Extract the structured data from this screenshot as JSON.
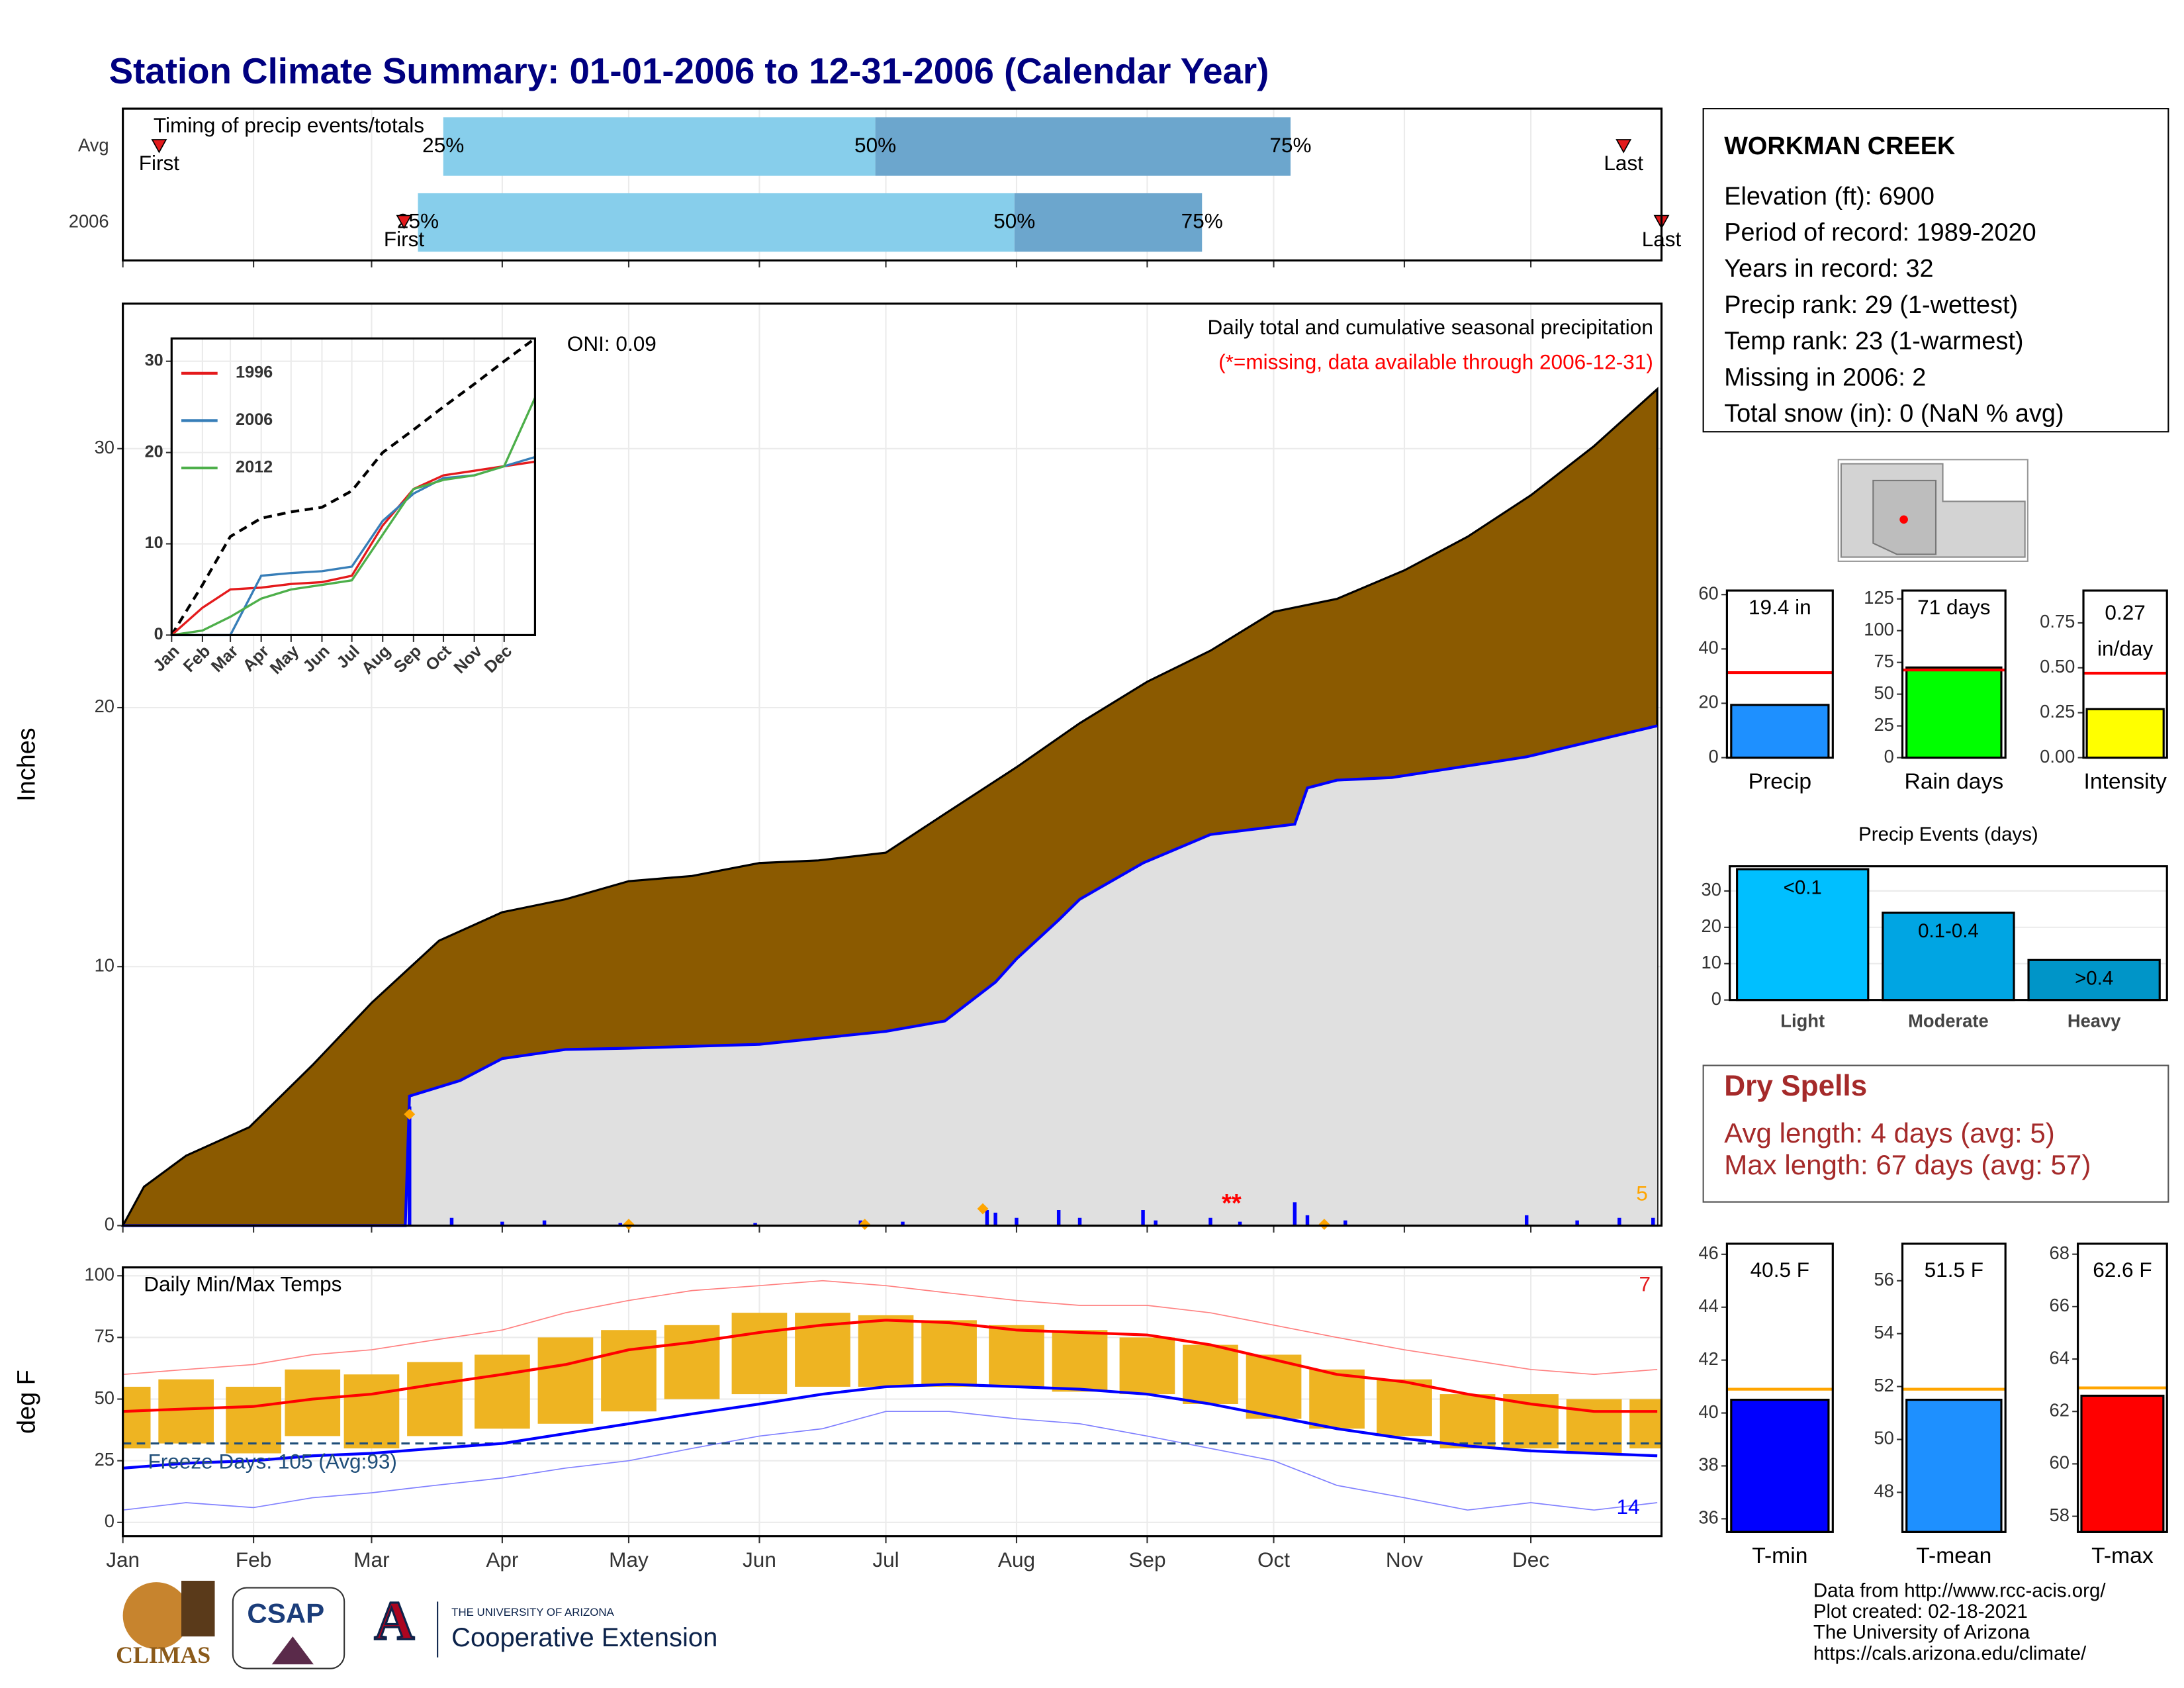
{
  "title": "Station Climate Summary: 01-01-2006 to 12-31-2006 (Calendar Year)",
  "chart_data": [
    {
      "type": "timing",
      "title": "Timing of precip events/totals",
      "categories": [
        "Avg",
        "2006"
      ],
      "first": [
        8.6,
        66.7
      ],
      "p25": [
        76,
        70
      ],
      "p50": [
        178.5,
        211.5
      ],
      "p75": [
        277,
        256
      ],
      "last": [
        356,
        365
      ],
      "percent_labels": [
        "25%",
        "50%",
        "75%"
      ],
      "first_label": "First",
      "last_label": "Last",
      "colors": {
        "lower": "#87ceeb",
        "upper": "#6ca6cd",
        "marker": "#e31a1c"
      },
      "xlim": [
        0,
        365
      ],
      "xticks": [
        0,
        31,
        59,
        90,
        120,
        151,
        181,
        212,
        243,
        273,
        304,
        334
      ]
    },
    {
      "type": "area",
      "subtitle": "Daily total and cumulative seasonal precipitation",
      "note": "(*=missing, data available through 2006-12-31)",
      "oni": "ONI: 0.09",
      "missing_mark": "**",
      "count_label": "5",
      "ylabel": "Inches",
      "avg_x": [
        0,
        5,
        15,
        30,
        45,
        59,
        75,
        90,
        105,
        120,
        135,
        151,
        165,
        181,
        195,
        212,
        227,
        243,
        258,
        273,
        288,
        304,
        319,
        334,
        349,
        364
      ],
      "avg_cumulative": [
        0,
        1.5,
        2.7,
        3.8,
        6.2,
        8.6,
        11,
        12.1,
        12.6,
        13.3,
        13.5,
        14,
        14.1,
        14.4,
        15.9,
        17.7,
        19.4,
        21,
        22.2,
        23.7,
        24.2,
        25.3,
        26.6,
        28.2,
        30.1,
        32.3
      ],
      "x": [
        0,
        67,
        68,
        80,
        90,
        105,
        120,
        151,
        181,
        195,
        207,
        212,
        222,
        227,
        242,
        258,
        278,
        281,
        288,
        301,
        333,
        364
      ],
      "cumulative": [
        0,
        0,
        5,
        5.6,
        6.45,
        6.8,
        6.85,
        7,
        7.5,
        7.9,
        9.4,
        10.3,
        11.8,
        12.6,
        14,
        15.1,
        15.5,
        16.9,
        17.2,
        17.3,
        18.1,
        19.3
      ],
      "daily_x": [
        68,
        78,
        90,
        100,
        118,
        150,
        175,
        185,
        205,
        207,
        212,
        222,
        227,
        242,
        245,
        258,
        265,
        278,
        281,
        290,
        333,
        345,
        355,
        363
      ],
      "daily": [
        4.6,
        0.3,
        0.15,
        0.2,
        0.1,
        0.1,
        0.2,
        0.15,
        0.6,
        0.5,
        0.3,
        0.6,
        0.3,
        0.6,
        0.2,
        0.3,
        0.15,
        0.9,
        0.4,
        0.2,
        0.4,
        0.2,
        0.3,
        0.3
      ],
      "marker_x": [
        68,
        120,
        176,
        204,
        285
      ],
      "markers": [
        4.3,
        0.05,
        0.05,
        0.65,
        0.05
      ],
      "colors": {
        "avg_area": "#8b5a00",
        "avg_line": "#000000",
        "area": "#e0e0e0",
        "line": "#0000ff",
        "daily": "#0000ff",
        "markers": "#ffa500",
        "note": "#ff0000",
        "count": "#ffa500"
      },
      "xlim": [
        0,
        365
      ],
      "xticks": [
        0,
        31,
        59,
        90,
        120,
        151,
        181,
        212,
        243,
        273,
        304,
        334
      ],
      "ylim": [
        0,
        35.6
      ],
      "yticks": [
        0,
        10,
        20,
        30
      ],
      "grid": true
    },
    {
      "type": "line",
      "x": [
        0,
        31,
        59,
        90,
        120,
        151,
        181,
        212,
        243,
        273,
        304,
        334,
        365
      ],
      "average": [
        0,
        5.5,
        10.8,
        12.8,
        13.5,
        14,
        15.8,
        20,
        22.5,
        25,
        27.5,
        30,
        32.5
      ],
      "series": [
        {
          "name": "1996",
          "color": "#e41a1c",
          "values": [
            0,
            3,
            5,
            5.2,
            5.6,
            5.8,
            6.5,
            12,
            16,
            17.5,
            18,
            18.5,
            19
          ]
        },
        {
          "name": "2006",
          "color": "#377eb8",
          "values": [
            0,
            0,
            0,
            6.5,
            6.8,
            7,
            7.5,
            12.5,
            15.5,
            17.2,
            17.5,
            18.5,
            19.5
          ]
        },
        {
          "name": "2012",
          "color": "#4daf4a",
          "values": [
            0,
            0.5,
            2,
            4,
            5,
            5.5,
            6,
            11,
            16,
            17,
            17.5,
            18.5,
            26
          ]
        }
      ],
      "xlim": [
        0,
        365
      ],
      "xticks": [
        {
          "value": 0,
          "label": "Jan"
        },
        {
          "value": 31,
          "label": "Feb"
        },
        {
          "value": 59,
          "label": "Mar"
        },
        {
          "value": 90,
          "label": "Apr"
        },
        {
          "value": 120,
          "label": "May"
        },
        {
          "value": 151,
          "label": "Jun"
        },
        {
          "value": 181,
          "label": "Jul"
        },
        {
          "value": 212,
          "label": "Aug"
        },
        {
          "value": 243,
          "label": "Sep"
        },
        {
          "value": 273,
          "label": "Oct"
        },
        {
          "value": 304,
          "label": "Nov"
        },
        {
          "value": 334,
          "label": "Dec"
        }
      ],
      "ylim": [
        0,
        32.5
      ],
      "yticks": [
        0,
        10,
        20,
        30
      ],
      "grid": true
    },
    {
      "type": "temperature",
      "title": "Daily Min/Max Temps",
      "freeze_label": "Freeze Days: 105 (Avg:93)",
      "high_count": "7",
      "low_count": "14",
      "ylabel": "deg F",
      "freeze": 32,
      "x": [
        0,
        15,
        31,
        45,
        59,
        74,
        90,
        105,
        120,
        135,
        151,
        166,
        181,
        196,
        212,
        227,
        243,
        258,
        273,
        288,
        304,
        319,
        334,
        349,
        364
      ],
      "avg_max": [
        45,
        46,
        47,
        50,
        52,
        56,
        60,
        64,
        70,
        73,
        77,
        80,
        82,
        81,
        78,
        77,
        76,
        72,
        66,
        60,
        57,
        52,
        48,
        45,
        45
      ],
      "avg_min": [
        22,
        24,
        25,
        27,
        28,
        30,
        32,
        36,
        40,
        44,
        48,
        52,
        55,
        56,
        55,
        54,
        52,
        48,
        43,
        38,
        34,
        31,
        29,
        28,
        27
      ],
      "max_extreme": [
        60,
        62,
        64,
        68,
        70,
        74,
        78,
        85,
        90,
        94,
        96,
        98,
        96,
        93,
        90,
        88,
        88,
        85,
        80,
        75,
        70,
        66,
        62,
        60,
        62
      ],
      "min_extreme": [
        5,
        8,
        6,
        10,
        12,
        15,
        18,
        22,
        25,
        30,
        35,
        38,
        45,
        45,
        42,
        40,
        35,
        30,
        25,
        15,
        10,
        5,
        8,
        5,
        8
      ],
      "daily_min": [
        30,
        32,
        28,
        35,
        30,
        35,
        38,
        40,
        45,
        50,
        52,
        55,
        55,
        55,
        55,
        53,
        52,
        48,
        42,
        38,
        35,
        30,
        30,
        28,
        30
      ],
      "daily_max": [
        55,
        58,
        55,
        62,
        60,
        65,
        68,
        75,
        78,
        80,
        85,
        85,
        84,
        82,
        80,
        78,
        75,
        72,
        68,
        62,
        58,
        52,
        52,
        50,
        50
      ],
      "colors": {
        "range": "#eeb422",
        "avg_max": "#ff0000",
        "avg_min": "#0000ff",
        "max_extreme": "#ff8080",
        "min_extreme": "#8080ff",
        "freeze": "#1f4e79",
        "high_count": "#e31a1c",
        "low_count": "#0000ff"
      },
      "xlim": [
        0,
        365
      ],
      "xticks": [
        {
          "value": 0,
          "label": "Jan"
        },
        {
          "value": 31,
          "label": "Feb"
        },
        {
          "value": 59,
          "label": "Mar"
        },
        {
          "value": 90,
          "label": "Apr"
        },
        {
          "value": 120,
          "label": "May"
        },
        {
          "value": 151,
          "label": "Jun"
        },
        {
          "value": 181,
          "label": "Jul"
        },
        {
          "value": 212,
          "label": "Aug"
        },
        {
          "value": 243,
          "label": "Sep"
        },
        {
          "value": 273,
          "label": "Oct"
        },
        {
          "value": 304,
          "label": "Nov"
        },
        {
          "value": 334,
          "label": "Dec"
        }
      ],
      "ylim": [
        -5.6,
        103.4
      ],
      "yticks": [
        0,
        25,
        50,
        75,
        100
      ],
      "grid": true
    },
    {
      "type": "bar",
      "categories": [
        "Precip"
      ],
      "values": [
        19.4
      ],
      "value_labels": [
        "19.4 in"
      ],
      "average": 31.3,
      "average_color": "#ff0000",
      "color": "#1e90ff",
      "ylim": [
        0,
        61.5
      ],
      "yticks": [
        0,
        20,
        40,
        60
      ]
    },
    {
      "type": "bar",
      "categories": [
        "Rain days"
      ],
      "values": [
        71
      ],
      "value_labels": [
        "71 days"
      ],
      "average": 69,
      "average_color": "#ff0000",
      "color": "#00ff00",
      "ylim": [
        0,
        131.6
      ],
      "yticks": [
        0,
        25,
        50,
        75,
        100,
        125
      ]
    },
    {
      "type": "bar",
      "categories": [
        "Intensity"
      ],
      "values": [
        0.27
      ],
      "value_labels": [
        "0.27 in/day"
      ],
      "average": 0.47,
      "average_color": "#ff0000",
      "color": "#ffff00",
      "ylim": [
        0,
        0.93
      ],
      "yticks": [
        {
          "value": 0,
          "label": "0.00"
        },
        0.25,
        {
          "value": 0.5,
          "label": "0.50"
        },
        0.75
      ]
    },
    {
      "type": "bar",
      "title": "Precip Events (days)",
      "categories": [
        "Light",
        "Moderate",
        "Heavy"
      ],
      "values": [
        36,
        24,
        11
      ],
      "bar_labels": [
        "<0.1",
        "0.1-0.4",
        ">0.4"
      ],
      "colors": [
        "#00bfff",
        "#00a5e3",
        "#0095c8"
      ],
      "ylim": [
        0,
        36.8
      ],
      "yticks": [
        0,
        10,
        20,
        30
      ],
      "grid": true
    },
    {
      "type": "bar",
      "categories": [
        "T-min"
      ],
      "values": [
        40.5
      ],
      "value_labels": [
        "40.5 F"
      ],
      "average": 40.9,
      "average_color": "#ffa500",
      "color": "#0000ff",
      "ylim": [
        35.5,
        46.4
      ],
      "yticks": [
        36,
        38,
        40,
        42,
        44,
        46
      ]
    },
    {
      "type": "bar",
      "categories": [
        "T-mean"
      ],
      "values": [
        51.5
      ],
      "value_labels": [
        "51.5 F"
      ],
      "average": 51.9,
      "average_color": "#ffa500",
      "color": "#1e90ff",
      "ylim": [
        46.5,
        57.4
      ],
      "yticks": [
        48,
        50,
        52,
        54,
        56
      ]
    },
    {
      "type": "bar",
      "categories": [
        "T-max"
      ],
      "values": [
        62.6
      ],
      "value_labels": [
        "62.6 F"
      ],
      "average": 62.9,
      "average_color": "#ffa500",
      "color": "#ff0000",
      "ylim": [
        57.4,
        68.4
      ],
      "yticks": [
        58,
        60,
        62,
        64,
        66,
        68
      ]
    }
  ],
  "station": {
    "name": "WORKMAN CREEK",
    "lines": [
      "Elevation (ft): 6900",
      "Period of record: 1989-2020",
      "Years in record: 32",
      "Precip rank: 29 (1-wettest)",
      "Temp rank: 23 (1-warmest)",
      "Missing in 2006: 2",
      "Total snow (in): 0 (NaN % avg)"
    ]
  },
  "dry_spells": {
    "title": "Dry Spells",
    "lines": [
      "Avg length: 4 days (avg: 5)",
      "Max length: 67 days (avg: 57)"
    ]
  },
  "footer": [
    "Data from http://www.rcc-acis.org/",
    "Plot created: 02-18-2021",
    "The University of Arizona",
    "https://cals.arizona.edu/climate/"
  ],
  "logos": {
    "climas": "CLIMAS",
    "csap": "CSAP",
    "ua": "A",
    "university": "THE UNIVERSITY OF ARIZONA",
    "extension": "Cooperative Extension"
  }
}
